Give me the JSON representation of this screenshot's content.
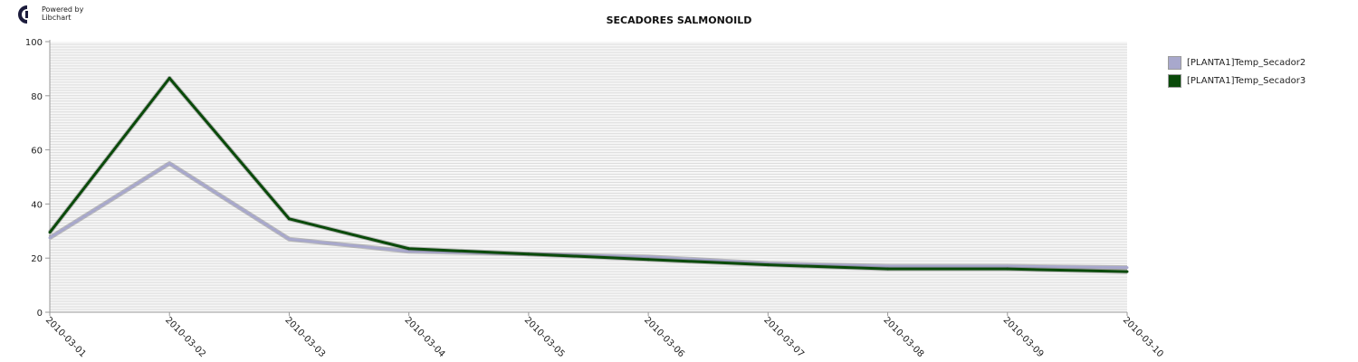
{
  "branding": {
    "line1": "Powered by",
    "line2": "Libchart"
  },
  "chart_data": {
    "type": "line",
    "title": "SECADORES SALMONOILD",
    "xlabel": "",
    "ylabel": "",
    "categories": [
      "2010-03-01",
      "2010-03-02",
      "2010-03-03",
      "2010-03-04",
      "2010-03-05",
      "2010-03-06",
      "2010-03-07",
      "2010-03-08",
      "2010-03-09",
      "2010-03-10"
    ],
    "ylim": [
      0,
      100
    ],
    "yticks": [
      0,
      20,
      40,
      60,
      80,
      100
    ],
    "grid": true,
    "legend_position": "right",
    "series": [
      {
        "name": "[PLANTA1]Temp_Secador2",
        "color": "#a8a8cc",
        "values": [
          27.5,
          55,
          27,
          22.5,
          21.5,
          20.5,
          18,
          17,
          17,
          16.5
        ]
      },
      {
        "name": "[PLANTA1]Temp_Secador3",
        "color": "#0a4a0a",
        "values": [
          29.5,
          86.5,
          34.5,
          23.5,
          21.5,
          19.5,
          17.5,
          16,
          16,
          15
        ]
      }
    ]
  }
}
